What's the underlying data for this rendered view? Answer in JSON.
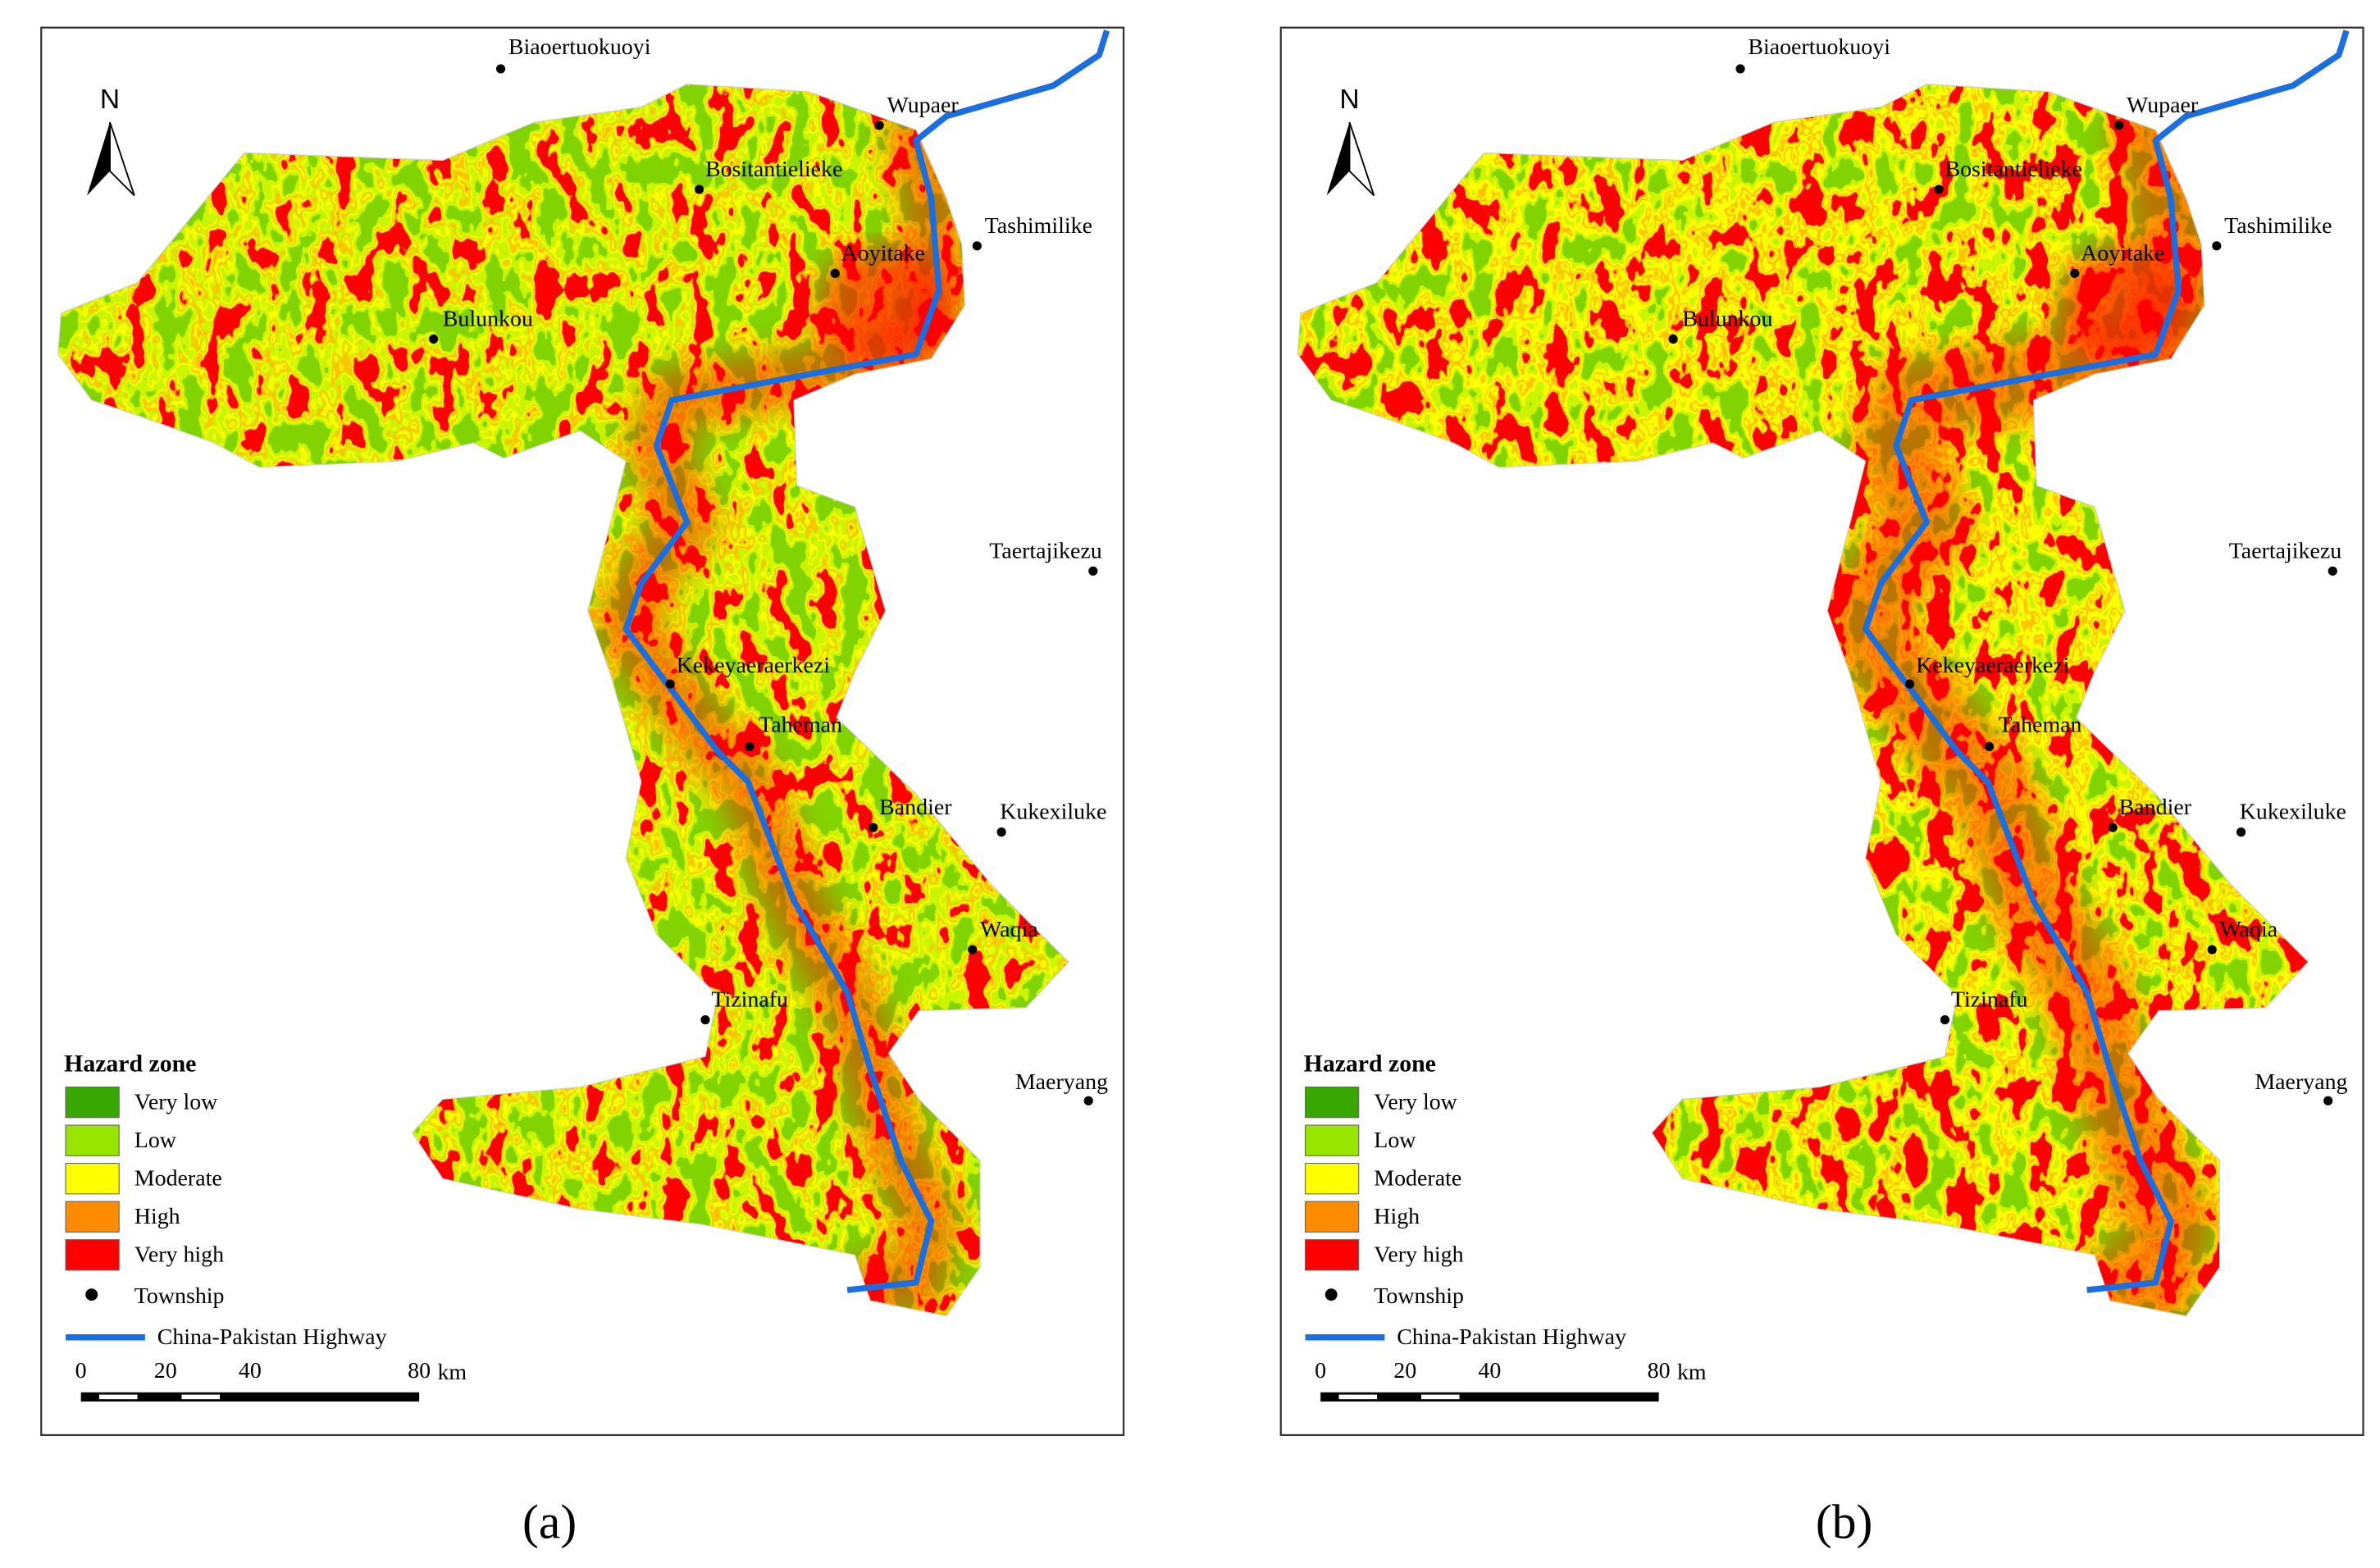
{
  "north": "N",
  "legend": {
    "title": "Hazard zone",
    "items": [
      {
        "label": "Very  low",
        "color": "#38a800"
      },
      {
        "label": "Low",
        "color": "#98e600"
      },
      {
        "label": "Moderate",
        "color": "#ffff00"
      },
      {
        "label": "High",
        "color": "#ff8c00"
      },
      {
        "label": "Very  high",
        "color": "#ff0000"
      }
    ],
    "township": "Township",
    "highway": "China-Pakistan Highway"
  },
  "scale": {
    "ticks": [
      0,
      20,
      40,
      80
    ],
    "unit": "km"
  },
  "townships": [
    "Biaoertuokuoyi",
    "Wupaer",
    "Bositantielieke",
    "Tashimilike",
    "Aoyitake",
    "Bulunkou",
    "Taertajikezu",
    "Kekeyaeraerkezi",
    "Taheman",
    "Bandier",
    "Kukexiluke",
    "Waqia",
    "Tizinafu",
    "Maeryang"
  ],
  "panels": [
    {
      "label": "(a)"
    },
    {
      "label": "(b)"
    }
  ]
}
